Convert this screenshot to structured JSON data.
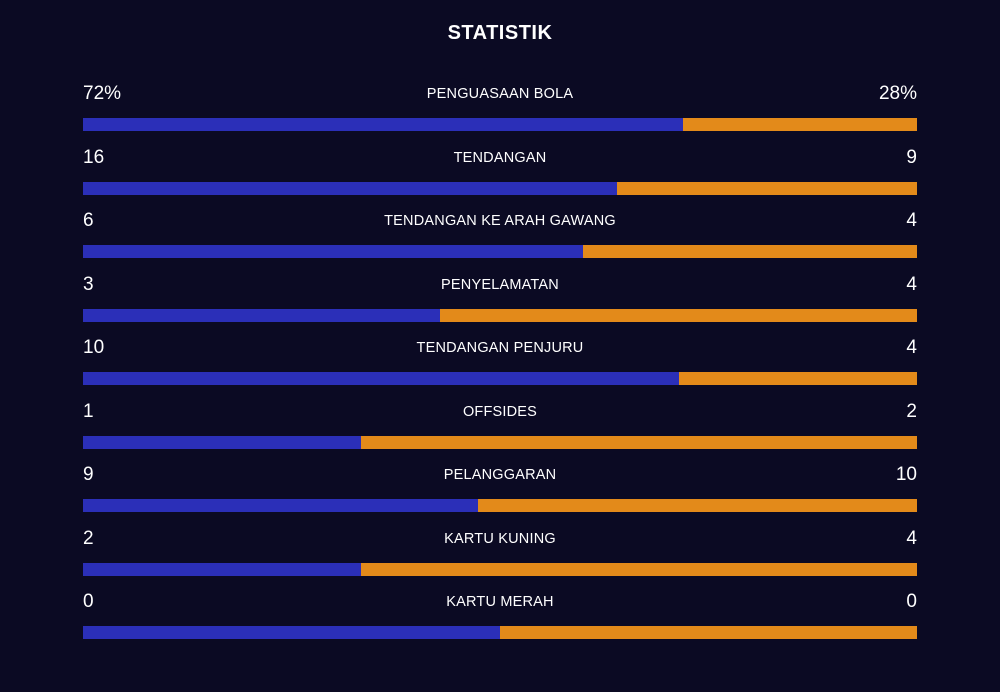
{
  "title": "STATISTIK",
  "colors": {
    "background": "#0b0a23",
    "home_bar": "#2b2fb8",
    "away_bar": "#e38a1a",
    "text": "#ffffff"
  },
  "stats": [
    {
      "label": "PENGUASAAN BOLA",
      "left": "72%",
      "right": "28%",
      "home_share": 0.72
    },
    {
      "label": "TENDANGAN",
      "left": "16",
      "right": "9",
      "home_share": 0.64
    },
    {
      "label": "TENDANGAN KE ARAH GAWANG",
      "left": "6",
      "right": "4",
      "home_share": 0.6
    },
    {
      "label": "PENYELAMATAN",
      "left": "3",
      "right": "4",
      "home_share": 0.4286
    },
    {
      "label": "TENDANGAN PENJURU",
      "left": "10",
      "right": "4",
      "home_share": 0.7143
    },
    {
      "label": "OFFSIDES",
      "left": "1",
      "right": "2",
      "home_share": 0.3333
    },
    {
      "label": "PELANGGARAN",
      "left": "9",
      "right": "10",
      "home_share": 0.4737
    },
    {
      "label": "KARTU KUNING",
      "left": "2",
      "right": "4",
      "home_share": 0.3333
    },
    {
      "label": "KARTU MERAH",
      "left": "0",
      "right": "0",
      "home_share": 0.5
    }
  ]
}
